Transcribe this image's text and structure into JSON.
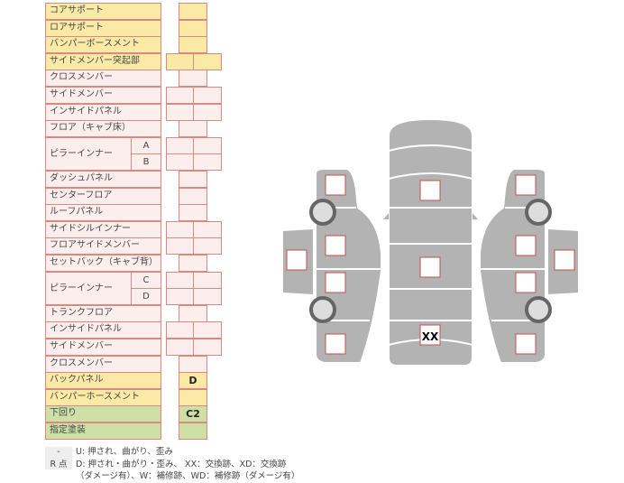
{
  "rows": [
    {
      "label": "コアサポート",
      "color": "y",
      "cells": 1,
      "value": ""
    },
    {
      "label": "ロアサポート",
      "color": "y",
      "cells": 1,
      "value": ""
    },
    {
      "label": "バンパーボースメント",
      "color": "y",
      "cells": 1,
      "value": ""
    },
    {
      "label": "サイドメンバー突起部",
      "color": "y",
      "cells": 2,
      "value": ""
    },
    {
      "label": "クロスメンバー",
      "color": "p",
      "cells": 1,
      "value": ""
    },
    {
      "label": "サイドメンバー",
      "color": "p",
      "cells": 2,
      "value": ""
    },
    {
      "label": "インサイドパネル",
      "color": "p",
      "cells": 2,
      "value": ""
    },
    {
      "label": "フロア（キャブ床）",
      "color": "p",
      "cells": 1,
      "value": ""
    },
    {
      "label": "ピラーインナー",
      "color": "p",
      "cells": 2,
      "value": "",
      "sub": [
        "A",
        "B"
      ]
    },
    {
      "label": "ダッシュパネル",
      "color": "p",
      "cells": 1,
      "value": ""
    },
    {
      "label": "センターフロア",
      "color": "p",
      "cells": 1,
      "value": ""
    },
    {
      "label": "ルーフパネル",
      "color": "p",
      "cells": 1,
      "value": ""
    },
    {
      "label": "サイドシルインナー",
      "color": "p",
      "cells": 2,
      "value": ""
    },
    {
      "label": "フロアサイドメンバー",
      "color": "p",
      "cells": 2,
      "value": ""
    },
    {
      "label": "セットバック（キャブ背）",
      "color": "p",
      "cells": 1,
      "value": ""
    },
    {
      "label": "ピラーインナー",
      "color": "p",
      "cells": 2,
      "value": "",
      "sub": [
        "C",
        "D"
      ]
    },
    {
      "label": "トランクフロア",
      "color": "p",
      "cells": 1,
      "value": ""
    },
    {
      "label": "インサイドパネル",
      "color": "p",
      "cells": 2,
      "value": ""
    },
    {
      "label": "サイドメンバー",
      "color": "p",
      "cells": 2,
      "value": ""
    },
    {
      "label": "クロスメンバー",
      "color": "p",
      "cells": 1,
      "value": ""
    },
    {
      "label": "バックパネル",
      "color": "y",
      "cells": 1,
      "value": "D"
    },
    {
      "label": "バンパーホースメント",
      "color": "y",
      "cells": 1,
      "value": ""
    },
    {
      "label": "下回り",
      "color": "g",
      "cells": 1,
      "value": "C2"
    },
    {
      "label": "指定塗装",
      "color": "g",
      "cells": 1,
      "value": ""
    }
  ],
  "legend": {
    "key1": "-",
    "text1": "U: 押され、曲がり、歪み",
    "key2": "R 点",
    "text2": "D: 押され・曲がり・歪み、 XX：交換跡、XD：交換跡",
    "text3": "（ダメージ有）、W：補修跡、WD：補修跡（ダメージ有）"
  },
  "diagram": {
    "center_rear_mark": "XX",
    "body_color": "#b3b3b3",
    "box_border": "#c0504d"
  }
}
